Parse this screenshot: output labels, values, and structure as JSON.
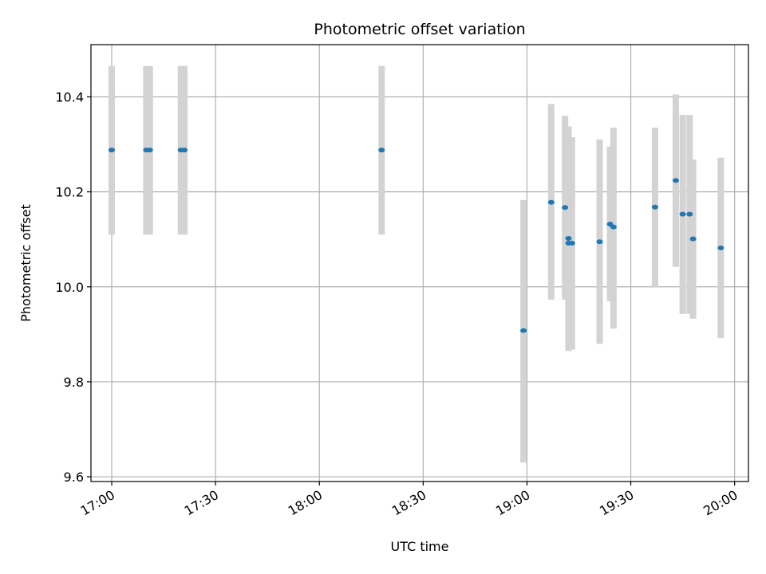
{
  "chart_data": {
    "type": "scatter",
    "title": "Photometric offset variation",
    "xlabel": "UTC time",
    "ylabel": "Photometric offset",
    "grid": true,
    "x_is_time": true,
    "xlim": [
      "16:54",
      "20:04"
    ],
    "ylim": [
      9.59,
      10.51
    ],
    "x_ticks": [
      {
        "value": "17:00",
        "label": "17:00"
      },
      {
        "value": "17:30",
        "label": "17:30"
      },
      {
        "value": "18:00",
        "label": "18:00"
      },
      {
        "value": "18:30",
        "label": "18:30"
      },
      {
        "value": "19:00",
        "label": "19:00"
      },
      {
        "value": "19:30",
        "label": "19:30"
      },
      {
        "value": "20:00",
        "label": "20:00"
      }
    ],
    "y_ticks": [
      {
        "value": 9.6,
        "label": "9.6"
      },
      {
        "value": 9.8,
        "label": "9.8"
      },
      {
        "value": 10.0,
        "label": "10.0"
      },
      {
        "value": 10.2,
        "label": "10.2"
      },
      {
        "value": 10.4,
        "label": "10.4"
      }
    ],
    "colors": {
      "points": "#1f77b4",
      "errorbars": "#d3d3d3",
      "grid": "#b0b0b0"
    },
    "series": [
      {
        "points": [
          {
            "x": "17:00",
            "y": 10.288,
            "low": 10.11,
            "high": 10.465
          },
          {
            "x": "17:10",
            "y": 10.288,
            "low": 10.11,
            "high": 10.465
          },
          {
            "x": "17:11",
            "y": 10.288,
            "low": 10.11,
            "high": 10.465
          },
          {
            "x": "17:20",
            "y": 10.288,
            "low": 10.11,
            "high": 10.465
          },
          {
            "x": "17:21",
            "y": 10.288,
            "low": 10.11,
            "high": 10.465
          },
          {
            "x": "18:18",
            "y": 10.288,
            "low": 10.11,
            "high": 10.465
          },
          {
            "x": "18:59",
            "y": 9.908,
            "low": 9.63,
            "high": 10.183
          },
          {
            "x": "19:07",
            "y": 10.178,
            "low": 9.973,
            "high": 10.385
          },
          {
            "x": "19:11",
            "y": 10.167,
            "low": 9.973,
            "high": 10.36
          },
          {
            "x": "19:12",
            "y": 10.102,
            "low": 9.865,
            "high": 10.338
          },
          {
            "x": "19:12",
            "y": 10.092,
            "low": 9.868,
            "high": 10.315
          },
          {
            "x": "19:13",
            "y": 10.092,
            "low": 9.868,
            "high": 10.315
          },
          {
            "x": "19:21",
            "y": 10.095,
            "low": 9.88,
            "high": 10.31
          },
          {
            "x": "19:24",
            "y": 10.132,
            "low": 9.97,
            "high": 10.295
          },
          {
            "x": "19:25",
            "y": 10.126,
            "low": 9.912,
            "high": 10.335
          },
          {
            "x": "19:37",
            "y": 10.168,
            "low": 10.0,
            "high": 10.335
          },
          {
            "x": "19:43",
            "y": 10.224,
            "low": 10.042,
            "high": 10.405
          },
          {
            "x": "19:45",
            "y": 10.153,
            "low": 9.943,
            "high": 10.362
          },
          {
            "x": "19:47",
            "y": 10.153,
            "low": 9.943,
            "high": 10.362
          },
          {
            "x": "19:48",
            "y": 10.101,
            "low": 9.933,
            "high": 10.268
          },
          {
            "x": "19:56",
            "y": 10.082,
            "low": 9.892,
            "high": 10.272
          }
        ]
      }
    ]
  }
}
